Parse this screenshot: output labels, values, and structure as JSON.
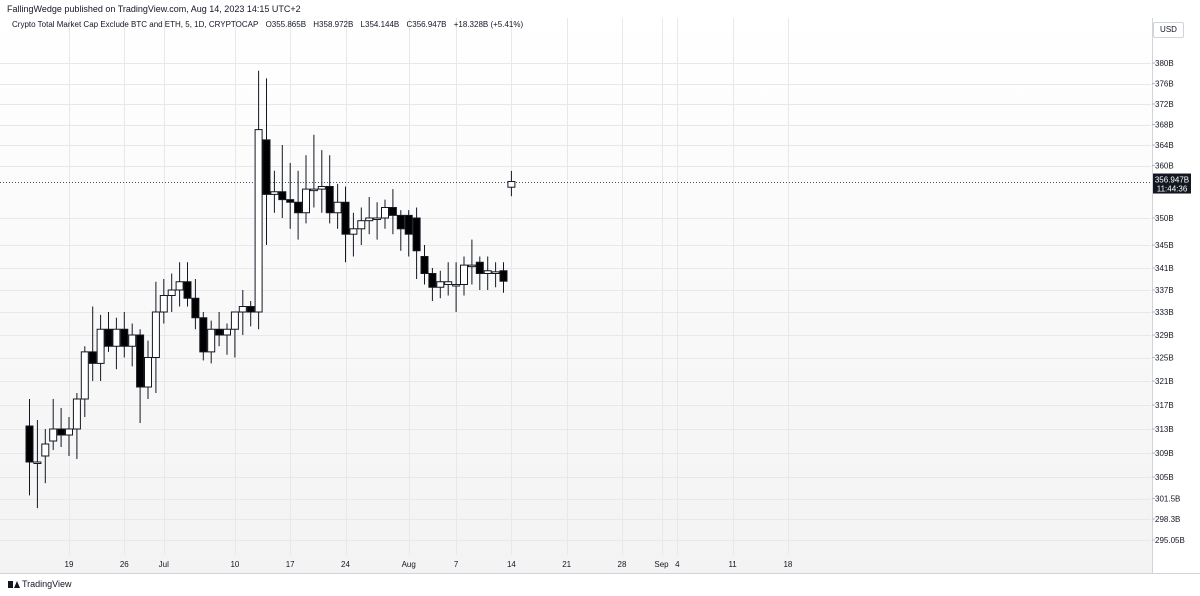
{
  "header": {
    "publisher_line": "FallingWedge published on TradingView.com, Aug 14, 2023 14:15 UTC+2"
  },
  "legend": {
    "symbol": "Crypto Total Market Cap Exclude BTC and ETH, 5, 1D, CRYPTOCAP",
    "open": "O355.865B",
    "high": "H358.972B",
    "low": "L354.144B",
    "close": "C356.947B",
    "change": "+18.328B (+5.41%)"
  },
  "currency": "USD",
  "price_badge": {
    "price": "356.947B",
    "countdown": "11:44:36"
  },
  "footer": {
    "brand": "TradingView"
  },
  "colors": {
    "up_body": "#ffffff",
    "down_body": "#000000",
    "wick": "#131722",
    "grid": "#e8e8e8",
    "badge_bg": "#131722",
    "badge_text": "#ffffff"
  },
  "chart_data": {
    "type": "candlestick",
    "title": "Crypto Total Market Cap Exclude BTC and ETH, 5, 1D, CRYPTOCAP",
    "y_unit": "B USD",
    "ylim": [
      292,
      384
    ],
    "grid": true,
    "last_price": 356.947,
    "y_ticks": [
      {
        "label": "380B",
        "value": 380
      },
      {
        "label": "376B",
        "value": 376
      },
      {
        "label": "372B",
        "value": 372
      },
      {
        "label": "368B",
        "value": 368
      },
      {
        "label": "364B",
        "value": 364
      },
      {
        "label": "360B",
        "value": 360
      },
      {
        "label": "350B",
        "value": 350
      },
      {
        "label": "345B",
        "value": 345
      },
      {
        "label": "341B",
        "value": 341
      },
      {
        "label": "337B",
        "value": 337
      },
      {
        "label": "333B",
        "value": 333
      },
      {
        "label": "329B",
        "value": 329
      },
      {
        "label": "325B",
        "value": 325
      },
      {
        "label": "321B",
        "value": 321
      },
      {
        "label": "317B",
        "value": 317
      },
      {
        "label": "313B",
        "value": 313
      },
      {
        "label": "309B",
        "value": 309
      },
      {
        "label": "305B",
        "value": 305
      },
      {
        "label": "301.5B",
        "value": 301.5
      },
      {
        "label": "298.3B",
        "value": 298.3
      },
      {
        "label": "295.05B",
        "value": 295.05
      }
    ],
    "x_ticks": [
      {
        "label": "19",
        "day": 0
      },
      {
        "label": "26",
        "day": 7
      },
      {
        "label": "Jul",
        "day": 12
      },
      {
        "label": "10",
        "day": 21
      },
      {
        "label": "17",
        "day": 28
      },
      {
        "label": "24",
        "day": 35
      },
      {
        "label": "Aug",
        "day": 43
      },
      {
        "label": "7",
        "day": 49
      },
      {
        "label": "14",
        "day": 56
      },
      {
        "label": "21",
        "day": 63
      },
      {
        "label": "28",
        "day": 70
      },
      {
        "label": "Sep",
        "day": 75
      },
      {
        "label": "4",
        "day": 77
      },
      {
        "label": "11",
        "day": 84
      },
      {
        "label": "18",
        "day": 91
      }
    ],
    "candles": [
      {
        "date": "2023-06-14",
        "o": 313.5,
        "h": 318,
        "l": 302,
        "c": 307.5
      },
      {
        "date": "2023-06-15",
        "o": 307.5,
        "h": 314.5,
        "l": 300,
        "c": 307.5
      },
      {
        "date": "2023-06-16",
        "o": 308.5,
        "h": 313,
        "l": 304,
        "c": 310.5
      },
      {
        "date": "2023-06-17",
        "o": 311,
        "h": 318,
        "l": 309.5,
        "c": 313
      },
      {
        "date": "2023-06-18",
        "o": 313,
        "h": 316.5,
        "l": 310,
        "c": 312
      },
      {
        "date": "2023-06-19",
        "o": 312,
        "h": 315,
        "l": 308.5,
        "c": 313
      },
      {
        "date": "2023-06-20",
        "o": 313,
        "h": 319,
        "l": 308,
        "c": 318
      },
      {
        "date": "2023-06-21",
        "o": 318,
        "h": 327,
        "l": 315,
        "c": 326
      },
      {
        "date": "2023-06-22",
        "o": 326,
        "h": 334,
        "l": 321,
        "c": 324
      },
      {
        "date": "2023-06-23",
        "o": 324,
        "h": 332.5,
        "l": 321,
        "c": 330
      },
      {
        "date": "2023-06-24",
        "o": 330,
        "h": 333,
        "l": 326,
        "c": 327
      },
      {
        "date": "2023-06-25",
        "o": 327,
        "h": 332,
        "l": 323,
        "c": 330
      },
      {
        "date": "2023-06-26",
        "o": 330,
        "h": 333,
        "l": 325,
        "c": 327
      },
      {
        "date": "2023-06-27",
        "o": 327,
        "h": 331,
        "l": 323.5,
        "c": 329
      },
      {
        "date": "2023-06-28",
        "o": 329,
        "h": 330,
        "l": 314,
        "c": 320
      },
      {
        "date": "2023-06-29",
        "o": 320,
        "h": 328,
        "l": 318,
        "c": 325
      },
      {
        "date": "2023-06-30",
        "o": 325,
        "h": 338.5,
        "l": 319,
        "c": 333
      },
      {
        "date": "2023-07-01",
        "o": 333,
        "h": 339,
        "l": 331,
        "c": 336
      },
      {
        "date": "2023-07-02",
        "o": 336,
        "h": 340,
        "l": 333,
        "c": 337
      },
      {
        "date": "2023-07-03",
        "o": 337,
        "h": 342,
        "l": 334,
        "c": 338.5
      },
      {
        "date": "2023-07-04",
        "o": 338.5,
        "h": 342,
        "l": 334,
        "c": 335.5
      },
      {
        "date": "2023-07-05",
        "o": 335.5,
        "h": 339,
        "l": 330,
        "c": 332
      },
      {
        "date": "2023-07-06",
        "o": 332,
        "h": 333,
        "l": 324.5,
        "c": 326
      },
      {
        "date": "2023-07-07",
        "o": 326,
        "h": 331.5,
        "l": 324,
        "c": 330
      },
      {
        "date": "2023-07-08",
        "o": 330,
        "h": 333,
        "l": 327,
        "c": 329
      },
      {
        "date": "2023-07-09",
        "o": 329,
        "h": 331,
        "l": 325.5,
        "c": 330
      },
      {
        "date": "2023-07-10",
        "o": 330,
        "h": 333,
        "l": 325,
        "c": 333
      },
      {
        "date": "2023-07-11",
        "o": 333,
        "h": 337,
        "l": 329,
        "c": 334
      },
      {
        "date": "2023-07-12",
        "o": 334,
        "h": 335,
        "l": 330.5,
        "c": 333
      },
      {
        "date": "2023-07-13",
        "o": 333,
        "h": 378.5,
        "l": 330,
        "c": 367
      },
      {
        "date": "2023-07-14",
        "o": 365,
        "h": 377,
        "l": 345,
        "c": 354.5
      },
      {
        "date": "2023-07-15",
        "o": 354.5,
        "h": 359,
        "l": 351,
        "c": 355
      },
      {
        "date": "2023-07-16",
        "o": 355,
        "h": 364,
        "l": 350,
        "c": 353.5
      },
      {
        "date": "2023-07-17",
        "o": 353.5,
        "h": 360.5,
        "l": 348,
        "c": 353
      },
      {
        "date": "2023-07-18",
        "o": 353,
        "h": 359,
        "l": 346,
        "c": 351
      },
      {
        "date": "2023-07-19",
        "o": 351,
        "h": 362,
        "l": 349,
        "c": 355.5
      },
      {
        "date": "2023-07-20",
        "o": 355.5,
        "h": 366,
        "l": 352,
        "c": 355.5
      },
      {
        "date": "2023-07-21",
        "o": 355.5,
        "h": 363,
        "l": 351,
        "c": 356
      },
      {
        "date": "2023-07-22",
        "o": 356,
        "h": 362,
        "l": 349,
        "c": 351
      },
      {
        "date": "2023-07-23",
        "o": 351,
        "h": 356.5,
        "l": 348,
        "c": 353
      },
      {
        "date": "2023-07-24",
        "o": 353,
        "h": 356,
        "l": 342,
        "c": 347
      },
      {
        "date": "2023-07-25",
        "o": 347,
        "h": 351,
        "l": 343,
        "c": 348
      },
      {
        "date": "2023-07-26",
        "o": 348,
        "h": 352,
        "l": 345,
        "c": 349.5
      },
      {
        "date": "2023-07-27",
        "o": 349.5,
        "h": 354,
        "l": 347,
        "c": 350
      },
      {
        "date": "2023-07-28",
        "o": 350,
        "h": 353,
        "l": 346,
        "c": 350
      },
      {
        "date": "2023-07-29",
        "o": 350,
        "h": 353.5,
        "l": 348,
        "c": 352
      },
      {
        "date": "2023-07-30",
        "o": 352,
        "h": 355.5,
        "l": 347,
        "c": 350.5
      },
      {
        "date": "2023-07-31",
        "o": 350.5,
        "h": 351.5,
        "l": 344,
        "c": 348
      },
      {
        "date": "2023-08-01",
        "o": 350.5,
        "h": 351.5,
        "l": 343,
        "c": 347
      },
      {
        "date": "2023-08-02",
        "o": 350,
        "h": 352,
        "l": 339,
        "c": 344
      },
      {
        "date": "2023-08-03",
        "o": 343,
        "h": 345,
        "l": 338,
        "c": 340
      },
      {
        "date": "2023-08-04",
        "o": 340,
        "h": 341,
        "l": 335,
        "c": 337.5
      },
      {
        "date": "2023-08-05",
        "o": 337.5,
        "h": 340.5,
        "l": 335.5,
        "c": 338.5
      },
      {
        "date": "2023-08-06",
        "o": 338,
        "h": 342,
        "l": 336,
        "c": 338.5
      },
      {
        "date": "2023-08-07",
        "o": 338,
        "h": 342,
        "l": 333,
        "c": 338
      },
      {
        "date": "2023-08-08",
        "o": 338,
        "h": 343,
        "l": 336,
        "c": 341.5
      },
      {
        "date": "2023-08-09",
        "o": 341.5,
        "h": 346,
        "l": 338,
        "c": 341.5
      },
      {
        "date": "2023-08-10",
        "o": 342,
        "h": 343,
        "l": 337,
        "c": 340
      },
      {
        "date": "2023-08-11",
        "o": 340,
        "h": 343,
        "l": 337,
        "c": 340.5
      },
      {
        "date": "2023-08-12",
        "o": 340,
        "h": 342,
        "l": 337.5,
        "c": 340.3
      },
      {
        "date": "2023-08-13",
        "o": 340.5,
        "h": 342,
        "l": 336.5,
        "c": 338.6
      },
      {
        "date": "2023-08-14",
        "o": 355.865,
        "h": 358.972,
        "l": 354.144,
        "c": 356.947
      }
    ]
  }
}
